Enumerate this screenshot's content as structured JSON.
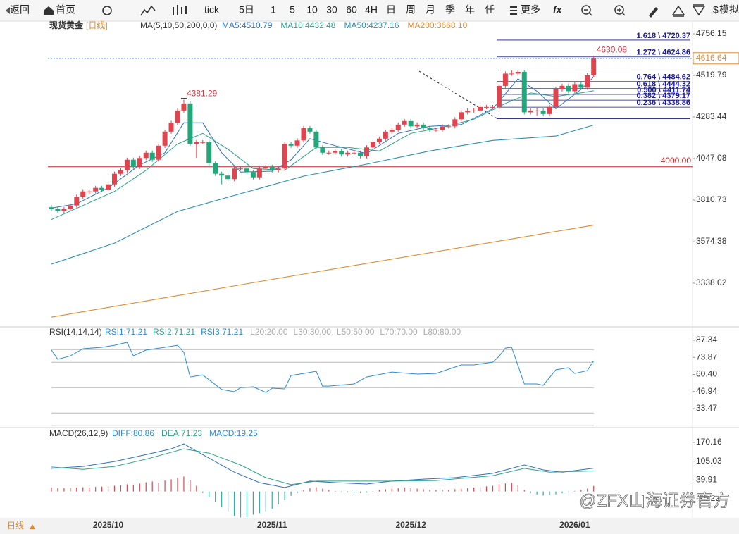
{
  "toolbar": {
    "back": "返回",
    "home": "首页",
    "tick": "tick",
    "periods": [
      "5日",
      "1",
      "5",
      "10",
      "30",
      "60",
      "4H",
      "日",
      "周",
      "月",
      "季",
      "年",
      "任"
    ],
    "more": "更多",
    "fx": "fx",
    "sim": "模拟"
  },
  "price_panel": {
    "legend": {
      "instrument": "现货黄金",
      "period": "[日线]",
      "ma_params": "MA(5,10,50,200,0,0)"
    },
    "ylim": [
      3105.6,
      4796.2
    ],
    "yticks": [
      4756.15,
      4519.79,
      4283.44,
      4047.08,
      3810.73,
      3574.38,
      3338.02
    ],
    "open": [
      3770,
      3760,
      3750,
      3760,
      3780,
      3830,
      3860,
      3860,
      3880,
      3870,
      3900,
      3960,
      3980,
      4040,
      4000,
      4050,
      4080,
      4040,
      4120,
      4200,
      4250,
      4320,
      4360,
      4130,
      4140,
      4140,
      4020,
      3960,
      3950,
      3930,
      3990,
      3990,
      3970,
      3940,
      3990,
      4000,
      3980,
      3990,
      4130,
      4120,
      4150,
      4220,
      4200,
      4110,
      4080,
      4080,
      4090,
      4070,
      4080,
      4080,
      4060,
      4110,
      4140,
      4160,
      4200,
      4210,
      4240,
      4260,
      4230,
      4240,
      4220,
      4210,
      4210,
      4230,
      4230,
      4270,
      4310,
      4320,
      4320,
      4340,
      4340,
      4340,
      4460,
      4530,
      4530,
      4540,
      4310,
      4320,
      4320,
      4300,
      4340,
      4440,
      4460,
      4430,
      4470,
      4450,
      4520
    ],
    "close": [
      3760,
      3750,
      3760,
      3780,
      3830,
      3860,
      3860,
      3880,
      3870,
      3900,
      3960,
      3980,
      4040,
      4000,
      4050,
      4080,
      4040,
      4120,
      4200,
      4250,
      4320,
      4360,
      4130,
      4140,
      4140,
      4020,
      3960,
      3950,
      3930,
      3990,
      3990,
      3970,
      3940,
      3990,
      4000,
      3980,
      3990,
      4130,
      4120,
      4150,
      4220,
      4200,
      4110,
      4080,
      4080,
      4090,
      4070,
      4080,
      4080,
      4060,
      4110,
      4140,
      4160,
      4200,
      4210,
      4240,
      4260,
      4230,
      4240,
      4220,
      4210,
      4210,
      4230,
      4230,
      4270,
      4310,
      4320,
      4320,
      4340,
      4340,
      4340,
      4460,
      4530,
      4530,
      4540,
      4310,
      4320,
      4320,
      4300,
      4340,
      4440,
      4460,
      4430,
      4470,
      4450,
      4520,
      4616.64
    ],
    "high": [
      3782,
      3772,
      3772,
      3792,
      3842,
      3872,
      3872,
      3892,
      3892,
      3912,
      3972,
      3992,
      4052,
      4052,
      4062,
      4092,
      4092,
      4132,
      4212,
      4262,
      4332,
      4381.29,
      4372,
      4152,
      4152,
      4152,
      4032,
      3972,
      3962,
      4002,
      4002,
      4002,
      3982,
      4002,
      4012,
      4012,
      4002,
      4142,
      4142,
      4162,
      4232,
      4232,
      4212,
      4122,
      4092,
      4102,
      4102,
      4092,
      4092,
      4092,
      4122,
      4152,
      4172,
      4212,
      4222,
      4252,
      4272,
      4272,
      4252,
      4252,
      4232,
      4222,
      4242,
      4242,
      4282,
      4322,
      4332,
      4332,
      4352,
      4352,
      4352,
      4472,
      4542,
      4550,
      4552,
      4552,
      4332,
      4332,
      4332,
      4352,
      4452,
      4472,
      4472,
      4482,
      4482,
      4532,
      4630.08
    ],
    "low": [
      3748,
      3738,
      3738,
      3748,
      3768,
      3818,
      3848,
      3848,
      3858,
      3858,
      3888,
      3948,
      3968,
      3988,
      3988,
      4038,
      4028,
      4028,
      4108,
      4188,
      4238,
      4308,
      4118,
      4050,
      4128,
      4008,
      3948,
      3900,
      3918,
      3918,
      3978,
      3958,
      3928,
      3928,
      3978,
      3968,
      3968,
      3978,
      4108,
      4108,
      4138,
      4188,
      4098,
      4068,
      4068,
      4068,
      4058,
      4058,
      4068,
      4048,
      4048,
      4098,
      4128,
      4148,
      4188,
      4198,
      4228,
      4218,
      4218,
      4208,
      4198,
      4198,
      4198,
      4218,
      4218,
      4258,
      4298,
      4308,
      4308,
      4328,
      4328,
      4328,
      4448,
      4518,
      4518,
      4298,
      4298,
      4290,
      4288,
      4288,
      4328,
      4428,
      4418,
      4418,
      4438,
      4438,
      4508
    ],
    "ma": [
      {
        "label": "MA5:4510.79",
        "color": "#2f6fc0",
        "x": [
          0,
          4,
          9,
          14,
          18,
          21,
          24,
          27,
          30,
          35,
          38,
          41,
          45,
          50,
          55,
          60,
          65,
          70,
          74,
          77,
          80,
          84,
          86
        ],
        "values": [
          3765,
          3790,
          3880,
          4010,
          4080,
          4250,
          4250,
          4080,
          3970,
          3975,
          4040,
          4160,
          4120,
          4075,
          4190,
          4230,
          4240,
          4330,
          4500,
          4430,
          4330,
          4440,
          4510.79
        ]
      },
      {
        "label": "MA10:4432.48",
        "color": "#2aa38a",
        "x": [
          0,
          5,
          10,
          15,
          20,
          24,
          28,
          32,
          37,
          42,
          47,
          52,
          57,
          62,
          67,
          72,
          76,
          80,
          84,
          86
        ],
        "values": [
          3700,
          3780,
          3860,
          3980,
          4130,
          4190,
          4100,
          3990,
          3980,
          4110,
          4110,
          4090,
          4190,
          4225,
          4270,
          4360,
          4420,
          4400,
          4420,
          4432.48
        ]
      },
      {
        "label": "MA50:4237.16",
        "color": "#2a8fb0",
        "x": [
          0,
          10,
          20,
          30,
          40,
          50,
          60,
          70,
          80,
          86
        ],
        "values": [
          3446,
          3566,
          3746,
          3847,
          3947,
          4015,
          4090,
          4150,
          4175,
          4237.16
        ]
      },
      {
        "label": "MA200:3668.10",
        "color": "#e08a30",
        "x": [
          0,
          40,
          86
        ],
        "values": [
          3145,
          3390,
          3668.1
        ]
      }
    ],
    "hline": {
      "value": 4000,
      "label": "4000.00"
    },
    "fib": [
      {
        "value": 4720.37,
        "label": "1.618 \\ 4720.37"
      },
      {
        "value": 4624.86,
        "label": "1.272 \\ 4624.86"
      },
      {
        "value": 4549.7
      },
      {
        "value": 4484.62,
        "label": "0.764 \\ 4484.62"
      },
      {
        "value": 4444.32,
        "label": "0.618 \\ 4444.32"
      },
      {
        "value": 4411.74,
        "label": "0.500 \\ 4411.74"
      },
      {
        "value": 4379.17,
        "label": "0.382 \\ 4379.17"
      },
      {
        "value": 4338.86,
        "label": "0.236 \\ 4338.86"
      },
      {
        "value": 4273.7
      }
    ]
  },
  "rsi_panel": {
    "title": "RSI(14,14,14)",
    "labels": [
      {
        "text": "RSI1:71.21",
        "color": "#2a8bd6"
      },
      {
        "text": "RSI2:71.21",
        "color": "#2aa38a"
      },
      {
        "text": "RSI3:71.21",
        "color": "#2a8bd6"
      }
    ],
    "ylim": [
      19.03,
      90.12
    ],
    "yticks": [
      87.34,
      73.87,
      {
        "value": 60.4,
        "label": "60.40"
      },
      46.94,
      33.47
    ],
    "ref_lines": [
      {
        "value": 20,
        "label": "L20:20.00"
      },
      {
        "value": 30,
        "label": "L30:30.00"
      },
      {
        "value": 50,
        "label": "L50:50.00"
      },
      {
        "value": 70,
        "label": "L70:70.00"
      },
      {
        "value": 80,
        "label": "L80:80.00"
      }
    ],
    "line": {
      "color": "#2a8bd6",
      "x": [
        0,
        1,
        3,
        5,
        8,
        10,
        12,
        13,
        15,
        18,
        20,
        21,
        22,
        24,
        27,
        29,
        30,
        32,
        34,
        35,
        37,
        38,
        40,
        42,
        43,
        44,
        48,
        50,
        54,
        58,
        61,
        65,
        67,
        70,
        71,
        72,
        73,
        75,
        77,
        78,
        80,
        82,
        83,
        85,
        86
      ],
      "values": [
        79.6,
        72.3,
        75,
        80.7,
        81.8,
        83.4,
        85.7,
        75,
        79.6,
        81.8,
        83.4,
        77.9,
        58.4,
        60,
        48.5,
        46.8,
        50,
        50.7,
        46.2,
        49.6,
        49,
        59.6,
        61.2,
        62.9,
        51.2,
        51.2,
        52.9,
        58.4,
        62.3,
        60.7,
        61.2,
        67.9,
        67.9,
        70.1,
        74.6,
        81.2,
        81.8,
        52.9,
        52.9,
        51.8,
        64,
        65.7,
        61.2,
        63.4,
        71.21
      ]
    }
  },
  "macd_panel": {
    "title": "MACD(26,12,9)",
    "labels": [
      {
        "text": "DIFF:80.86",
        "color": "#2a8bd6"
      },
      {
        "text": "DEA:71.23",
        "color": "#2aa38a"
      },
      {
        "text": "MACD:19.25",
        "color": "#2a8bd6"
      }
    ],
    "ylim": [
      -91.1,
      214.1
    ],
    "yticks": [
      170.16,
      105.03,
      39.91,
      -25.22
    ],
    "diff": {
      "color": "#2f6fc0",
      "x": [
        0,
        5,
        10,
        15,
        19,
        21,
        24,
        29,
        33,
        37,
        41,
        45,
        50,
        54,
        59,
        64,
        70,
        75,
        78,
        81,
        86
      ],
      "values": [
        80,
        87,
        104,
        128,
        148,
        165,
        128,
        67,
        31,
        14,
        36,
        31,
        26,
        36,
        43,
        48,
        63,
        92,
        75,
        67,
        80.86
      ]
    },
    "dea": {
      "color": "#2aa38a",
      "x": [
        0,
        5,
        10,
        15,
        21,
        25,
        30,
        34,
        38,
        42,
        48,
        54,
        61,
        70,
        75,
        79,
        86
      ],
      "values": [
        85,
        77,
        87,
        112,
        148,
        133,
        92,
        48,
        24,
        36,
        36,
        36,
        38,
        55,
        80,
        67,
        71.23
      ]
    },
    "hist": [
      14,
      12,
      12,
      13,
      14,
      15,
      14,
      16,
      17,
      18,
      20,
      22,
      25,
      24,
      28,
      32,
      35,
      30,
      38,
      42,
      48,
      52,
      40,
      20,
      -5,
      -20,
      -35,
      -55,
      -70,
      -85,
      -90,
      -88,
      -80,
      -75,
      -70,
      -60,
      -45,
      -30,
      -15,
      -5,
      5,
      12,
      15,
      10,
      5,
      2,
      -2,
      -3,
      -4,
      -5,
      -3,
      2,
      5,
      8,
      10,
      12,
      14,
      12,
      10,
      8,
      6,
      5,
      6,
      5,
      8,
      10,
      12,
      14,
      15,
      18,
      20,
      25,
      28,
      30,
      22,
      5,
      -5,
      -10,
      -14,
      -12,
      -10,
      -6,
      -3,
      2,
      6,
      10,
      19.25
    ]
  },
  "dates": [
    null,
    null,
    null,
    null,
    null,
    null,
    null,
    null,
    null,
    "2025/10",
    null,
    null,
    null,
    null,
    null,
    null,
    null,
    null,
    null,
    null,
    null,
    null,
    null,
    null,
    null,
    null,
    null,
    null,
    null,
    null,
    null,
    null,
    null,
    null,
    null,
    "2025/11",
    null,
    null,
    null,
    null,
    null,
    null,
    null,
    null,
    null,
    null,
    null,
    null,
    null,
    null,
    null,
    null,
    null,
    null,
    null,
    null,
    null,
    "2025/12",
    null,
    null,
    null,
    null,
    null,
    null,
    null,
    null,
    null,
    null,
    null,
    null,
    null,
    null,
    null,
    null,
    null,
    null,
    null,
    null,
    null,
    null,
    null,
    null,
    null,
    "2026/01",
    null,
    null,
    null,
    null
  ],
  "footer": {
    "period": "日线"
  },
  "watermark": "@ZFX山海证券官方"
}
